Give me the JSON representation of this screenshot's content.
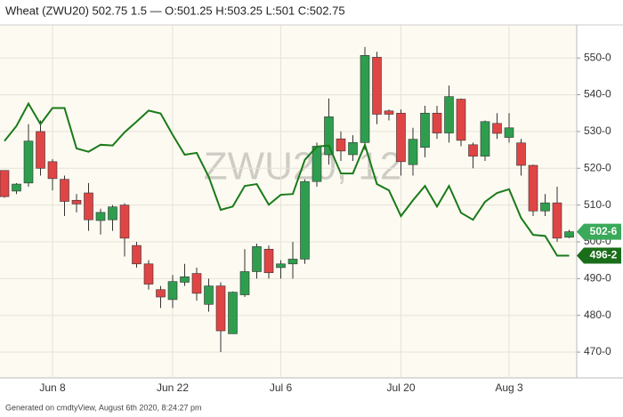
{
  "chart_data": {
    "type": "candlestick",
    "title": "Wheat (ZWU20) 502.75 1.5 — O:501.25 H:503.25 L:501 C:502.75",
    "watermark": "ZWU20, 12",
    "footer": "Generated on cmdtyView, August 6th 2020, 8:24:27 pm",
    "categories": [
      null,
      null,
      null,
      null,
      "Jun 8",
      null,
      null,
      null,
      null,
      null,
      null,
      null,
      null,
      null,
      "Jun 22",
      null,
      null,
      null,
      null,
      null,
      null,
      null,
      null,
      "Jul 6",
      null,
      null,
      null,
      null,
      null,
      null,
      null,
      null,
      null,
      "Jul 20",
      null,
      null,
      null,
      null,
      null,
      null,
      null,
      null,
      "Aug 3",
      null,
      null,
      null,
      null,
      null
    ],
    "candles": {
      "up_color": "#2e9e4e",
      "down_color": "#e04545",
      "open": [
        519.4,
        513.8,
        516,
        530,
        521.8,
        517,
        511.3,
        513.3,
        505.8,
        506,
        510,
        499,
        494,
        487,
        484.3,
        489,
        491.4,
        483,
        488,
        475,
        485.6,
        491.9,
        498,
        493,
        494,
        495.3,
        516.4,
        523.7,
        528,
        523.7,
        527,
        550.2,
        535.6,
        535,
        521,
        525.7,
        535,
        529.6,
        538.8,
        526.4,
        523.3,
        532.2,
        528.4,
        526.9,
        520.8,
        508.4,
        510.6,
        501.25
      ],
      "high": [
        519.5,
        516,
        532,
        533,
        522.5,
        518,
        513,
        516,
        509,
        510,
        510.5,
        500,
        495,
        488,
        491,
        494,
        493,
        490,
        489,
        486.5,
        498,
        499.5,
        499,
        495,
        500,
        517,
        527,
        539,
        530,
        529,
        553,
        551.7,
        536,
        536,
        531,
        537,
        537,
        542.5,
        539,
        527,
        533,
        535,
        535,
        528,
        521,
        513,
        515,
        503.25
      ],
      "low": [
        512,
        513,
        515,
        518,
        514,
        507,
        508,
        503,
        502,
        503,
        496,
        493,
        487,
        482,
        482,
        488,
        484,
        481,
        470,
        475,
        485,
        490,
        490,
        490,
        490,
        494,
        515,
        521,
        522,
        522,
        525,
        532,
        533,
        518,
        518,
        523,
        528,
        527,
        526,
        520,
        522,
        528,
        527,
        518,
        507,
        507,
        500,
        501
      ],
      "close": [
        512.3,
        515.7,
        527.4,
        520,
        517.2,
        511,
        510.3,
        506,
        508,
        509.5,
        501,
        494,
        488.5,
        485,
        489.2,
        490.5,
        486,
        488,
        475.8,
        486.3,
        491.9,
        498.7,
        491.6,
        494,
        495.3,
        516.4,
        526,
        534,
        524.7,
        527,
        550.7,
        534.7,
        534.7,
        521.8,
        527.9,
        535,
        529.6,
        539.5,
        527.6,
        523.3,
        532.7,
        529.5,
        531,
        520.8,
        508.4,
        510.6,
        501,
        502.75
      ],
      "value_labels": [
        null,
        null,
        null,
        null,
        null,
        null,
        null,
        null,
        null,
        null,
        null,
        null,
        null,
        null,
        null,
        null,
        null,
        null,
        null,
        null,
        null,
        null,
        null,
        null,
        null,
        null,
        null,
        null,
        null,
        null,
        null,
        null,
        null,
        null,
        null,
        null,
        null,
        null,
        null,
        null,
        null,
        null,
        null,
        null,
        null,
        null,
        null,
        "502-6"
      ],
      "label_color": "#3aaa5a"
    },
    "series": [
      {
        "color": "#1a7a1a",
        "values": [
          527.4,
          531.5,
          537.6,
          532,
          536.4,
          536.4,
          525.4,
          524.5,
          526.4,
          526.2,
          529.8,
          532.7,
          535.7,
          534.9,
          529.1,
          523.7,
          524.2,
          517.7,
          508.7,
          509.6,
          515.2,
          515.7,
          510.1,
          512.8,
          513,
          522.3,
          525.9,
          526.2,
          518.6,
          518.6,
          526.4,
          515.7,
          514,
          507,
          511.3,
          515.2,
          509.6,
          515.2,
          507.9,
          506,
          510.9,
          513.3,
          514.3,
          506.5,
          501.9,
          501.6,
          496.25,
          496.25
        ],
        "value_labels": [
          null,
          null,
          null,
          null,
          null,
          null,
          null,
          null,
          null,
          null,
          null,
          null,
          null,
          null,
          null,
          null,
          null,
          null,
          null,
          null,
          null,
          null,
          null,
          null,
          null,
          null,
          null,
          null,
          null,
          null,
          null,
          null,
          null,
          null,
          null,
          null,
          null,
          null,
          null,
          null,
          null,
          null,
          null,
          null,
          null,
          null,
          null,
          "496-2"
        ],
        "label_color": "#1a6e1a"
      }
    ],
    "ylim": [
      463,
      559
    ],
    "yticks": [
      {
        "value": 470,
        "label": "470-0"
      },
      {
        "value": 480,
        "label": "480-0"
      },
      {
        "value": 490,
        "label": "490-0"
      },
      {
        "value": 500,
        "label": "500-0"
      },
      {
        "value": 510,
        "label": "510-0"
      },
      {
        "value": 520,
        "label": "520-0"
      },
      {
        "value": 530,
        "label": "530-0"
      },
      {
        "value": 540,
        "label": "540-0"
      },
      {
        "value": 550,
        "label": "550-0"
      }
    ],
    "grid": true
  }
}
